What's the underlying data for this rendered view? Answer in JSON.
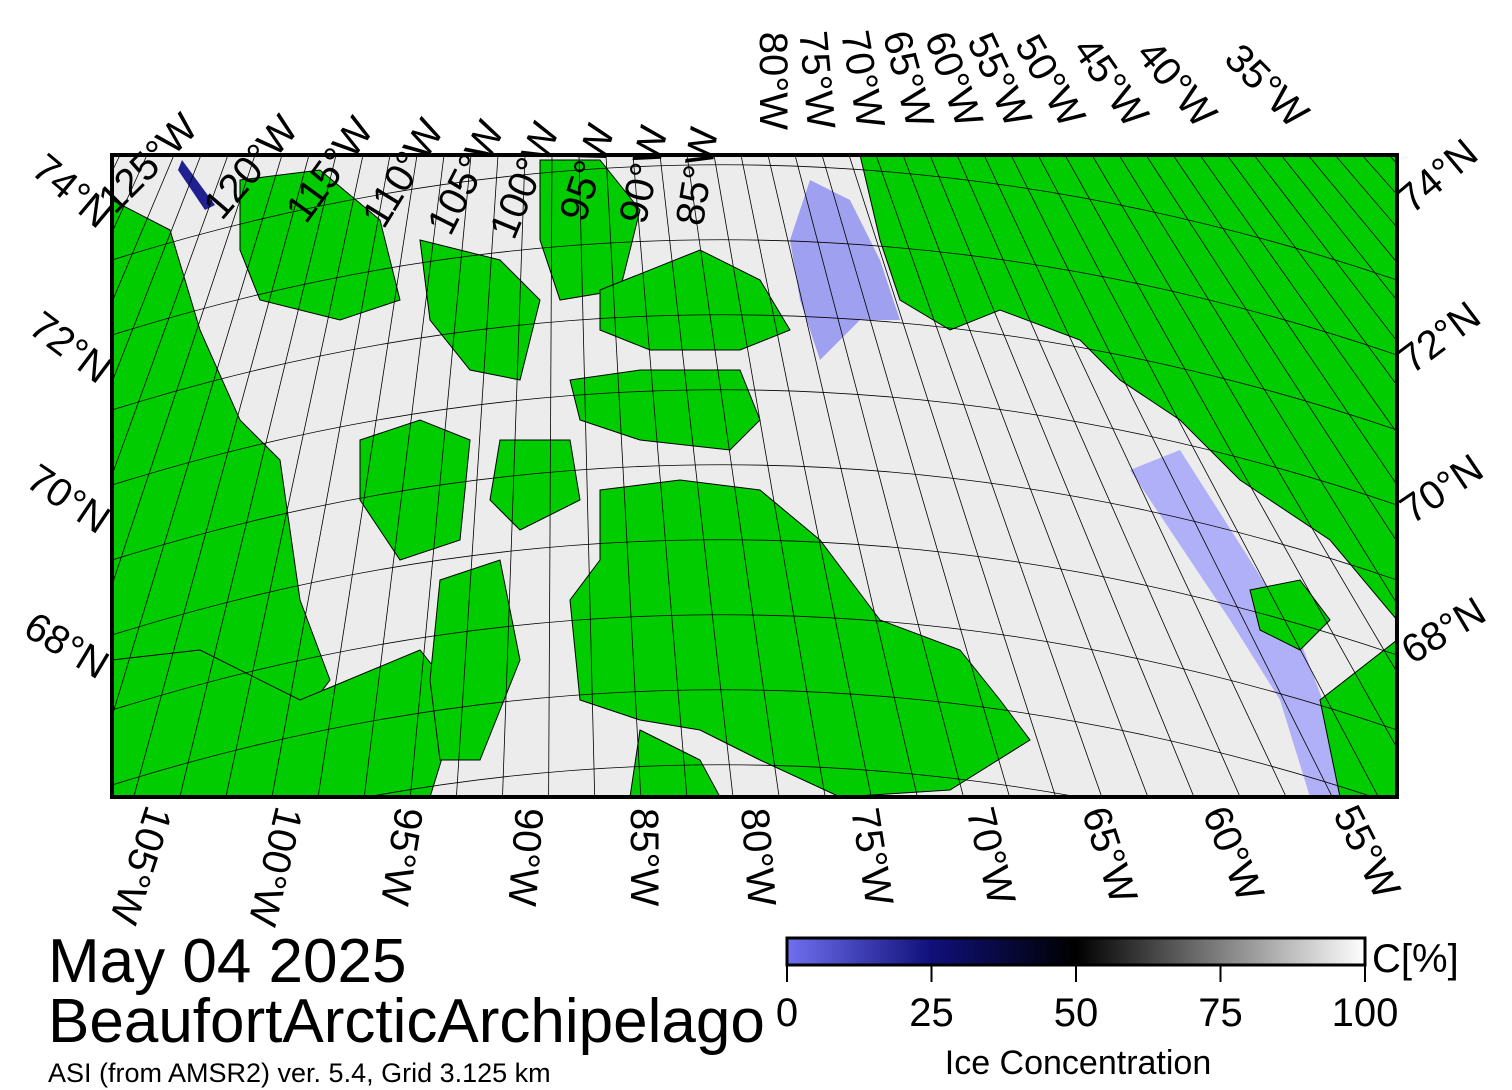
{
  "map": {
    "date": "May 04 2025",
    "region": "BeaufortArcticArchipelago",
    "source": "ASI (from AMSR2) ver. 5.4,  Grid 3.125 km",
    "top_longitudes": [
      "125°W",
      "120°W",
      "115°W",
      "110°W",
      "105°W",
      "100°W",
      "95°W",
      "90°W",
      "85°W",
      "80°W",
      "75°W",
      "70°W",
      "65°W",
      "60°W",
      "55°W",
      "50°W",
      "45°W",
      "40°W",
      "35°W"
    ],
    "bottom_longitudes": [
      "105°W",
      "100°W",
      "95°W",
      "90°W",
      "85°W",
      "80°W",
      "75°W",
      "70°W",
      "65°W",
      "60°W",
      "55°W"
    ],
    "left_latitudes": [
      "74°N",
      "72°N",
      "70°N",
      "68°N"
    ],
    "right_latitudes": [
      "74°N",
      "72°N",
      "70°N",
      "68°N"
    ]
  },
  "colorbar": {
    "title": "Ice Concentration",
    "unit": "C[%]",
    "lim": [
      0,
      100
    ],
    "ticks": [
      0,
      25,
      50,
      75,
      100
    ]
  }
}
